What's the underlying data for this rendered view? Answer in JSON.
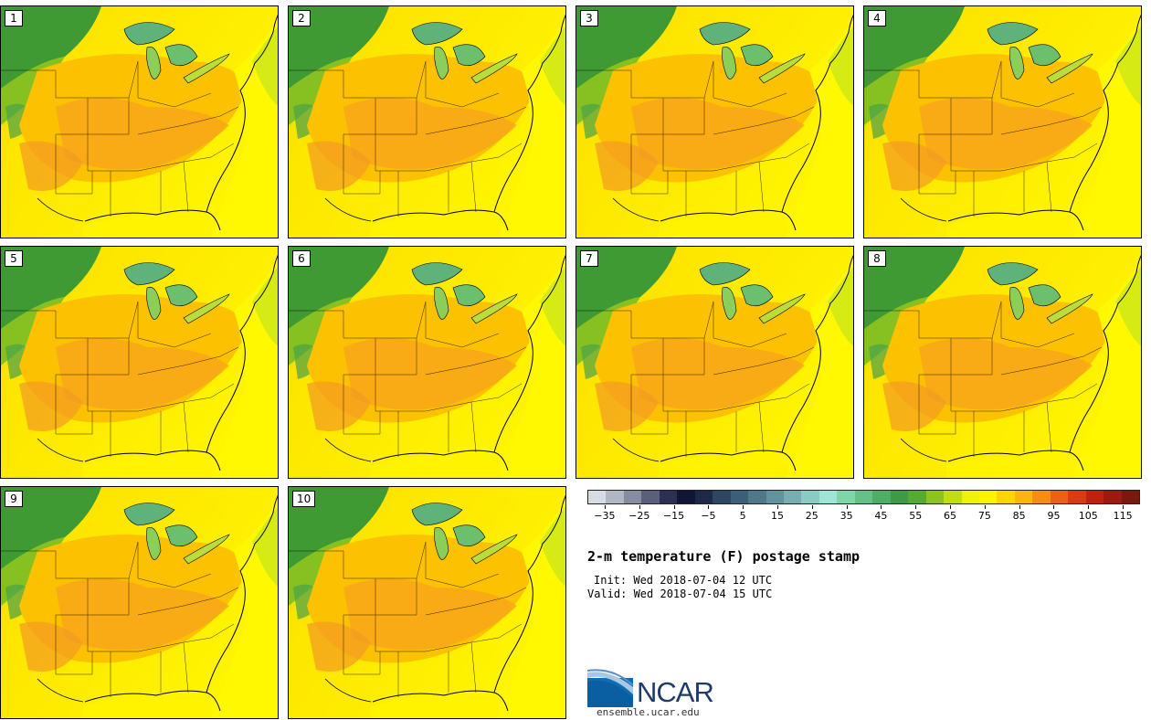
{
  "panels": [
    "1",
    "2",
    "3",
    "4",
    "5",
    "6",
    "7",
    "8",
    "9",
    "10"
  ],
  "legend": {
    "colors": [
      "#d7dbe3",
      "#b2b7c4",
      "#878ca0",
      "#5a6079",
      "#2b3152",
      "#101734",
      "#1c2a48",
      "#2e4760",
      "#3f5e77",
      "#4f7889",
      "#62929c",
      "#77aeb0",
      "#8bcbc5",
      "#9ee5d6",
      "#7fd6a6",
      "#64c286",
      "#4eae67",
      "#3e9b45",
      "#54ab2f",
      "#8cc51e",
      "#c2dd10",
      "#eef10a",
      "#fff400",
      "#ffd500",
      "#fbb410",
      "#f68d14",
      "#ec6214",
      "#d93b12",
      "#bf220f",
      "#9d1a10",
      "#7a180e"
    ],
    "tick_labels": [
      "−35",
      "−25",
      "−15",
      "−5",
      "5",
      "15",
      "25",
      "35",
      "45",
      "55",
      "65",
      "75",
      "85",
      "95",
      "105",
      "115"
    ],
    "min": -40,
    "max": 120
  },
  "title": "2-m temperature (F) postage stamp",
  "init": "Init: Wed 2018-07-04 12 UTC",
  "valid": "Valid: Wed 2018-07-04 15 UTC",
  "logo": {
    "name": "NCAR",
    "site": "ensemble.ucar.edu"
  }
}
